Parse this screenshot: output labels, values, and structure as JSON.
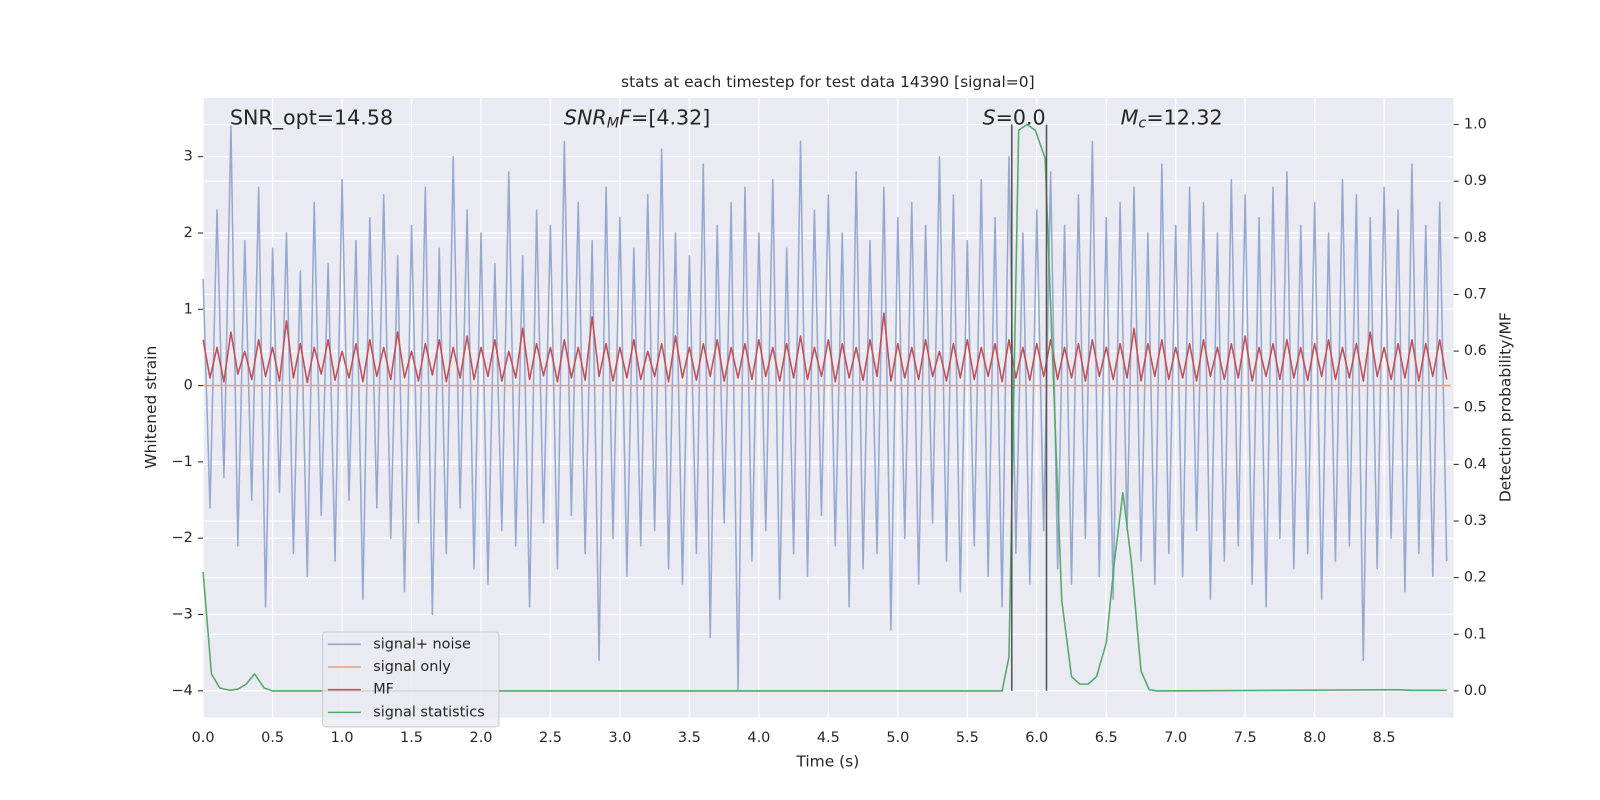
{
  "chart_data": {
    "type": "line",
    "title": "stats at each timestep for test data 14390 [signal=0]",
    "xlabel": "Time (s)",
    "ylabel": "Whitened strain",
    "y2label": "Detection probability/MF",
    "annotations": [
      [
        {
          "text": "SNR_opt=14.58"
        }
      ],
      [
        {
          "text": "SNR",
          "italic": true
        },
        {
          "text": "M",
          "italic": true,
          "subscript": true
        },
        {
          "text": "F",
          "italic": true
        },
        {
          "text": "=[4.32]"
        }
      ],
      [
        {
          "text": "S",
          "italic": true
        },
        {
          "text": "=0.0"
        }
      ],
      [
        {
          "text": "M",
          "italic": true
        },
        {
          "text": "c",
          "italic": true,
          "subscript": true
        },
        {
          "text": "=12.32"
        }
      ]
    ],
    "grid": true,
    "legend": "lower left",
    "xlim": [
      0,
      9.0
    ],
    "ylim": [
      -4.35,
      3.77
    ],
    "y2lim": [
      -0.047,
      1.047
    ],
    "xticks": [
      {
        "value": 0,
        "label": "0.0"
      },
      {
        "value": 0.5,
        "label": "0.5"
      },
      {
        "value": 1,
        "label": "1.0"
      },
      {
        "value": 1.5,
        "label": "1.5"
      },
      {
        "value": 2,
        "label": "2.0"
      },
      {
        "value": 2.5,
        "label": "2.5"
      },
      {
        "value": 3,
        "label": "3.0"
      },
      {
        "value": 3.5,
        "label": "3.5"
      },
      {
        "value": 4,
        "label": "4.0"
      },
      {
        "value": 4.5,
        "label": "4.5"
      },
      {
        "value": 5,
        "label": "5.0"
      },
      {
        "value": 5.5,
        "label": "5.5"
      },
      {
        "value": 6,
        "label": "6.0"
      },
      {
        "value": 6.5,
        "label": "6.5"
      },
      {
        "value": 7,
        "label": "7.0"
      },
      {
        "value": 7.5,
        "label": "7.5"
      },
      {
        "value": 8,
        "label": "8.0"
      },
      {
        "value": 8.5,
        "label": "8.5"
      }
    ],
    "yticks": [
      {
        "value": -4,
        "label": "−4"
      },
      {
        "value": -3,
        "label": "−3"
      },
      {
        "value": -2,
        "label": "−2"
      },
      {
        "value": -1,
        "label": "−1"
      },
      0,
      1,
      2,
      3
    ],
    "y2ticks": [
      {
        "value": 0,
        "label": "0.0"
      },
      {
        "value": 0.1,
        "label": "0.1"
      },
      {
        "value": 0.2,
        "label": "0.2"
      },
      {
        "value": 0.3,
        "label": "0.3"
      },
      {
        "value": 0.4,
        "label": "0.4"
      },
      {
        "value": 0.5,
        "label": "0.5"
      },
      {
        "value": 0.6,
        "label": "0.6"
      },
      {
        "value": 0.7,
        "label": "0.7"
      },
      {
        "value": 0.8,
        "label": "0.8"
      },
      {
        "value": 0.9,
        "label": "0.9"
      },
      {
        "value": 1,
        "label": "1.0"
      }
    ],
    "vlines": [
      5.82,
      6.07
    ],
    "vline_color": "#555555",
    "x": [
      0,
      0.05,
      0.1,
      0.15,
      0.2,
      0.25,
      0.3,
      0.35,
      0.4,
      0.45,
      0.5,
      0.55,
      0.6,
      0.65,
      0.7,
      0.75,
      0.8,
      0.85,
      0.9,
      0.95,
      1,
      1.05,
      1.1,
      1.15,
      1.2,
      1.25,
      1.3,
      1.35,
      1.4,
      1.45,
      1.5,
      1.55,
      1.6,
      1.65,
      1.7,
      1.75,
      1.8,
      1.85,
      1.9,
      1.95,
      2,
      2.05,
      2.1,
      2.15,
      2.2,
      2.25,
      2.3,
      2.35,
      2.4,
      2.45,
      2.5,
      2.55,
      2.6,
      2.65,
      2.7,
      2.75,
      2.8,
      2.85,
      2.9,
      2.95,
      3,
      3.05,
      3.1,
      3.15,
      3.2,
      3.25,
      3.3,
      3.35,
      3.4,
      3.45,
      3.5,
      3.55,
      3.6,
      3.65,
      3.7,
      3.75,
      3.8,
      3.85,
      3.9,
      3.95,
      4,
      4.05,
      4.1,
      4.15,
      4.2,
      4.25,
      4.3,
      4.35,
      4.4,
      4.45,
      4.5,
      4.55,
      4.6,
      4.65,
      4.7,
      4.75,
      4.8,
      4.85,
      4.9,
      4.95,
      5,
      5.05,
      5.1,
      5.15,
      5.2,
      5.25,
      5.3,
      5.35,
      5.4,
      5.45,
      5.5,
      5.55,
      5.6,
      5.65,
      5.7,
      5.75,
      5.8,
      5.85,
      5.9,
      5.95,
      6,
      6.05,
      6.1,
      6.15,
      6.2,
      6.25,
      6.3,
      6.35,
      6.4,
      6.45,
      6.5,
      6.55,
      6.6,
      6.65,
      6.7,
      6.75,
      6.8,
      6.85,
      6.9,
      6.95,
      7,
      7.05,
      7.1,
      7.15,
      7.2,
      7.25,
      7.3,
      7.35,
      7.4,
      7.45,
      7.5,
      7.55,
      7.6,
      7.65,
      7.7,
      7.75,
      7.8,
      7.85,
      7.9,
      7.95,
      8,
      8.05,
      8.1,
      8.15,
      8.2,
      8.25,
      8.3,
      8.35,
      8.4,
      8.45,
      8.5,
      8.55,
      8.6,
      8.65,
      8.7,
      8.75,
      8.8,
      8.85,
      8.9,
      8.95
    ],
    "series": [
      {
        "name": "signal+ noise",
        "color": "#96a8cf",
        "values": [
          1.4,
          -1.6,
          2.3,
          -1.2,
          3.4,
          -2.1,
          1.9,
          -1.5,
          2.6,
          -2.9,
          1.8,
          -1.4,
          2.0,
          -2.2,
          1.5,
          -2.5,
          2.4,
          -1.7,
          1.6,
          -2.3,
          2.7,
          -1.5,
          1.9,
          -2.8,
          2.2,
          -1.6,
          2.5,
          -2.0,
          1.7,
          -2.7,
          2.1,
          -1.8,
          2.6,
          -3.0,
          1.8,
          -2.2,
          3.0,
          -1.6,
          2.3,
          -2.4,
          2.0,
          -2.6,
          1.6,
          -1.9,
          2.8,
          -2.1,
          1.7,
          -2.9,
          2.3,
          -1.8,
          2.1,
          -2.4,
          3.2,
          -1.7,
          2.4,
          -2.2,
          1.9,
          -3.6,
          2.6,
          -2.0,
          2.2,
          -2.5,
          1.8,
          -2.1,
          2.5,
          -1.9,
          3.1,
          -2.4,
          2.0,
          -2.6,
          1.7,
          -2.2,
          2.9,
          -3.3,
          2.1,
          -1.8,
          2.4,
          -4.0,
          2.6,
          -2.3,
          2.0,
          -1.9,
          2.7,
          -2.8,
          1.8,
          -2.2,
          3.2,
          -2.5,
          2.3,
          -1.7,
          2.5,
          -2.1,
          2.0,
          -2.9,
          2.8,
          -2.4,
          1.9,
          -2.2,
          2.6,
          -3.2,
          2.2,
          -2.0,
          2.4,
          -2.6,
          2.1,
          -1.8,
          3.0,
          -2.3,
          2.5,
          -2.7,
          1.9,
          -2.1,
          2.7,
          -2.5,
          2.2,
          -2.9,
          3.0,
          -2.2,
          2.0,
          -2.6,
          2.3,
          -1.9,
          2.8,
          -2.4,
          2.1,
          -2.6,
          2.5,
          -2.0,
          3.2,
          -2.5,
          2.2,
          -2.8,
          2.4,
          -1.9,
          2.6,
          -2.3,
          2.0,
          -2.6,
          2.9,
          -2.2,
          2.1,
          -2.5,
          2.6,
          -1.9,
          2.4,
          -2.8,
          2.0,
          -2.3,
          2.7,
          -2.1,
          2.5,
          -2.6,
          2.2,
          -2.9,
          2.6,
          -2.0,
          2.8,
          -2.4,
          2.1,
          -2.2,
          2.4,
          -2.8,
          2.0,
          -2.3,
          2.7,
          -2.1,
          2.5,
          -3.6,
          2.2,
          -2.4,
          2.6,
          -2.0,
          2.3,
          -2.7,
          2.9,
          -2.2,
          2.1,
          -2.5,
          2.4,
          -2.3
        ]
      },
      {
        "name": "signal only",
        "color": "#e8a083",
        "x": [
          0,
          8.98
        ],
        "values": [
          0,
          0
        ]
      },
      {
        "name": "MF",
        "color": "#c44e52",
        "values": [
          0.6,
          0.1,
          0.5,
          0.05,
          0.7,
          0.15,
          0.45,
          0.08,
          0.6,
          0.12,
          0.5,
          0.06,
          0.85,
          0.1,
          0.55,
          0.04,
          0.5,
          0.15,
          0.6,
          0.07,
          0.45,
          0.1,
          0.55,
          0.05,
          0.6,
          0.12,
          0.5,
          0.08,
          0.7,
          0.1,
          0.45,
          0.06,
          0.55,
          0.14,
          0.6,
          0.05,
          0.5,
          0.1,
          0.65,
          0.08,
          0.5,
          0.12,
          0.6,
          0.06,
          0.45,
          0.1,
          0.75,
          0.08,
          0.55,
          0.13,
          0.5,
          0.05,
          0.6,
          0.1,
          0.5,
          0.07,
          0.9,
          0.12,
          0.55,
          0.06,
          0.5,
          0.1,
          0.6,
          0.08,
          0.45,
          0.12,
          0.55,
          0.05,
          0.65,
          0.1,
          0.5,
          0.07,
          0.55,
          0.12,
          0.6,
          0.06,
          0.5,
          0.1,
          0.55,
          0.08,
          0.6,
          0.12,
          0.5,
          0.06,
          0.55,
          0.1,
          0.65,
          0.08,
          0.5,
          0.12,
          0.6,
          0.05,
          0.55,
          0.1,
          0.5,
          0.07,
          0.6,
          0.12,
          0.95,
          0.06,
          0.55,
          0.1,
          0.5,
          0.08,
          0.6,
          0.12,
          0.45,
          0.06,
          0.55,
          0.1,
          0.6,
          0.08,
          0.5,
          0.12,
          0.55,
          0.05,
          0.6,
          0.1,
          0.5,
          0.07,
          0.55,
          0.12,
          0.6,
          0.08,
          0.5,
          0.1,
          0.55,
          0.06,
          0.6,
          0.12,
          0.5,
          0.08,
          0.55,
          0.1,
          0.75,
          0.06,
          0.55,
          0.12,
          0.6,
          0.08,
          0.5,
          0.1,
          0.55,
          0.06,
          0.6,
          0.12,
          0.5,
          0.08,
          0.55,
          0.1,
          0.65,
          0.06,
          0.5,
          0.12,
          0.55,
          0.08,
          0.6,
          0.1,
          0.5,
          0.07,
          0.55,
          0.12,
          0.6,
          0.08,
          0.5,
          0.1,
          0.55,
          0.06,
          0.7,
          0.12,
          0.5,
          0.08,
          0.55,
          0.1,
          0.6,
          0.06,
          0.55,
          0.12,
          0.6,
          0.08
        ]
      },
      {
        "name": "signal statistics",
        "color": "#55a868",
        "axis": "y2",
        "x": [
          0,
          0.06,
          0.12,
          0.19,
          0.25,
          0.31,
          0.37,
          0.44,
          0.5,
          5.75,
          5.8,
          5.87,
          5.93,
          5.99,
          6.06,
          6.12,
          6.18,
          6.25,
          6.31,
          6.37,
          6.43,
          6.5,
          6.56,
          6.62,
          6.68,
          6.75,
          6.81,
          6.87,
          8.5,
          8.6,
          8.7,
          8.95
        ],
        "values": [
          0.21,
          0.03,
          0.005,
          0.001,
          0.003,
          0.012,
          0.03,
          0.005,
          0.0,
          0.0,
          0.06,
          0.99,
          1.0,
          0.99,
          0.94,
          0.55,
          0.16,
          0.025,
          0.012,
          0.012,
          0.025,
          0.085,
          0.23,
          0.35,
          0.23,
          0.035,
          0.002,
          0.0,
          0.002,
          0.002,
          0.001,
          0.001
        ]
      }
    ]
  }
}
